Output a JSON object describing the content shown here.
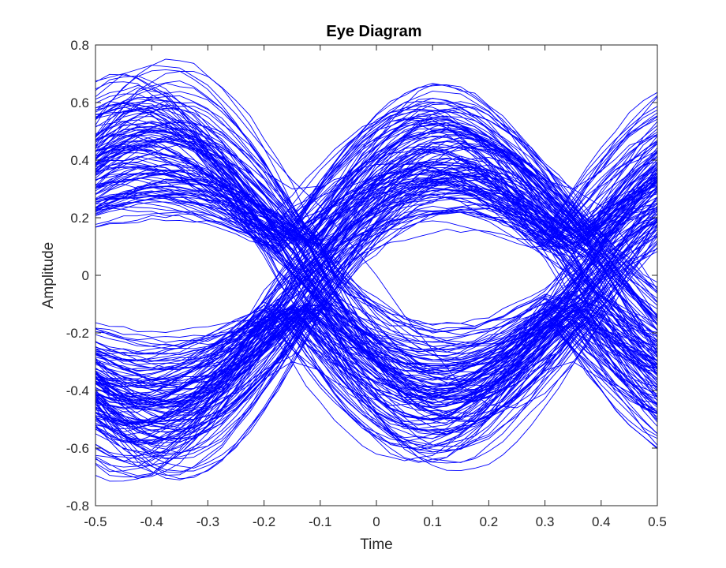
{
  "chart_data": {
    "type": "line",
    "title": "Eye Diagram",
    "xlabel": "Time",
    "ylabel": "Amplitude",
    "xlim": [
      -0.5,
      0.5
    ],
    "ylim": [
      -0.8,
      0.8
    ],
    "xticks": [
      -0.5,
      -0.4,
      -0.3,
      -0.2,
      -0.1,
      0,
      0.1,
      0.2,
      0.3,
      0.4,
      0.5
    ],
    "xtick_labels": [
      "-0.5",
      "-0.4",
      "-0.3",
      "-0.2",
      "-0.1",
      "0",
      "0.1",
      "0.2",
      "0.3",
      "0.4",
      "0.5"
    ],
    "yticks": [
      -0.8,
      -0.6,
      -0.4,
      -0.2,
      0,
      0.2,
      0.4,
      0.6,
      0.8
    ],
    "ytick_labels": [
      "-0.8",
      "-0.6",
      "-0.4",
      "-0.2",
      "0",
      "0.2",
      "0.4",
      "0.6",
      "0.8"
    ],
    "grid": false,
    "legend": "none",
    "line_color": "#0000ff",
    "symbol_transition_times": [
      -0.15,
      0.35
    ],
    "symbol_levels": [
      0.3,
      -0.3
    ],
    "eye_opening_half_height": 0.2,
    "traces": [
      {
        "x": [
          -0.5,
          -0.45,
          -0.4,
          -0.35,
          -0.3,
          -0.25,
          -0.2,
          -0.15,
          -0.1,
          -0.05,
          0,
          0.05,
          0.1,
          0.15,
          0.2,
          0.25,
          0.3,
          0.35,
          0.4,
          0.45,
          0.5
        ],
        "y": [
          0.62,
          0.7,
          0.73,
          0.72,
          0.66,
          0.56,
          0.44,
          0.33,
          0.24,
          0.12,
          0,
          -0.14,
          -0.26,
          -0.38,
          -0.45,
          -0.46,
          -0.41,
          -0.31,
          -0.16,
          0.02,
          0.2
        ]
      },
      {
        "x": [
          -0.5,
          -0.45,
          -0.4,
          -0.35,
          -0.3,
          -0.25,
          -0.2,
          -0.15,
          -0.1,
          -0.05,
          0,
          0.05,
          0.1,
          0.15,
          0.2,
          0.25,
          0.3,
          0.35,
          0.4,
          0.45,
          0.5
        ],
        "y": [
          0.55,
          0.59,
          0.61,
          0.6,
          0.55,
          0.46,
          0.36,
          0.3,
          0.31,
          0.42,
          0.53,
          0.6,
          0.64,
          0.63,
          0.57,
          0.47,
          0.37,
          0.3,
          0.24,
          0.1,
          -0.05
        ]
      },
      {
        "x": [
          -0.5,
          -0.45,
          -0.4,
          -0.35,
          -0.3,
          -0.25,
          -0.2,
          -0.15,
          -0.1,
          -0.05,
          0,
          0.05,
          0.1,
          0.15,
          0.2,
          0.25,
          0.3,
          0.35,
          0.4,
          0.45,
          0.5
        ],
        "y": [
          -0.55,
          -0.6,
          -0.63,
          -0.62,
          -0.57,
          -0.47,
          -0.36,
          -0.3,
          -0.33,
          -0.43,
          -0.52,
          -0.57,
          -0.59,
          -0.56,
          -0.5,
          -0.41,
          -0.33,
          -0.3,
          -0.36,
          -0.46,
          -0.55
        ]
      },
      {
        "x": [
          -0.5,
          -0.45,
          -0.4,
          -0.35,
          -0.3,
          -0.25,
          -0.2,
          -0.15,
          -0.1,
          -0.05,
          0,
          0.05,
          0.1,
          0.15,
          0.2,
          0.25,
          0.3,
          0.35,
          0.4,
          0.45,
          0.5
        ],
        "y": [
          -0.5,
          -0.56,
          -0.58,
          -0.55,
          -0.48,
          -0.4,
          -0.33,
          -0.28,
          -0.16,
          -0.02,
          0.12,
          0.25,
          0.35,
          0.4,
          0.41,
          0.38,
          0.33,
          0.3,
          0.36,
          0.5,
          0.62
        ]
      }
    ]
  }
}
